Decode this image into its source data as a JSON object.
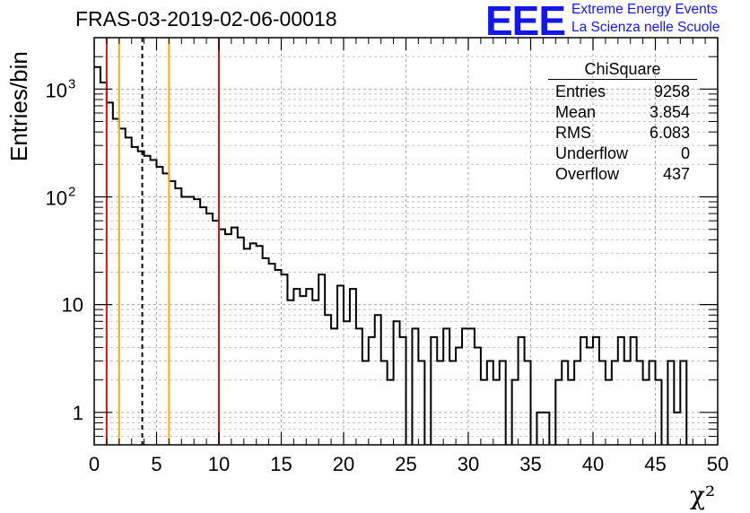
{
  "header": {
    "title": "FRAS-03-2019-02-06-00018",
    "logo_text": "EEE",
    "logo_line1": "Extreme Energy Events",
    "logo_line2": "La Scienza nelle Scuole"
  },
  "stats": {
    "name": "ChiSquare",
    "rows": [
      {
        "label": "Entries",
        "value": "9258"
      },
      {
        "label": "Mean",
        "value": "3.854"
      },
      {
        "label": "RMS",
        "value": "6.083"
      },
      {
        "label": "Underflow",
        "value": "0"
      },
      {
        "label": "Overflow",
        "value": "437"
      }
    ]
  },
  "chart_data": {
    "type": "histogram",
    "title": "FRAS-03-2019-02-06-00018",
    "xlabel": "χ²",
    "ylabel": "Entries/bin",
    "xlim": [
      0,
      50
    ],
    "ylim": [
      0.5,
      3000
    ],
    "yscale": "log",
    "grid": true,
    "bin_width": 0.5,
    "x_ticks": [
      "0",
      "5",
      "10",
      "15",
      "20",
      "25",
      "30",
      "35",
      "40",
      "45",
      "50"
    ],
    "y_ticks": [
      "1",
      "10",
      "10²",
      "10³"
    ],
    "bin_start": 0,
    "counts": [
      1600,
      1150,
      750,
      530,
      430,
      355,
      290,
      265,
      240,
      220,
      190,
      165,
      140,
      120,
      100,
      100,
      95,
      80,
      70,
      60,
      50,
      45,
      52,
      42,
      33,
      37,
      35,
      27,
      24,
      21,
      19,
      11,
      14,
      12,
      14,
      11,
      19,
      8,
      6,
      15,
      7,
      14,
      6,
      3,
      5,
      8,
      3,
      2,
      7,
      5,
      0,
      6,
      3,
      0,
      5,
      3,
      6,
      3,
      4,
      6,
      6,
      4,
      2,
      3,
      2,
      3,
      0,
      2,
      5,
      3,
      0,
      1,
      1,
      0,
      2,
      3,
      2,
      3,
      5,
      4,
      5,
      3,
      2,
      3,
      5,
      3,
      5,
      3,
      2,
      3,
      2,
      0,
      3,
      1,
      3,
      0,
      0,
      0,
      0,
      0
    ],
    "lines": [
      {
        "x": 1,
        "color": "#dd1111",
        "style": "solid"
      },
      {
        "x": 2,
        "color": "#f2b300",
        "style": "solid"
      },
      {
        "x": 3.854,
        "color": "#000000",
        "style": "dashed"
      },
      {
        "x": 6,
        "color": "#f2b300",
        "style": "solid"
      },
      {
        "x": 10,
        "color": "#dd1111",
        "style": "solid"
      }
    ]
  }
}
